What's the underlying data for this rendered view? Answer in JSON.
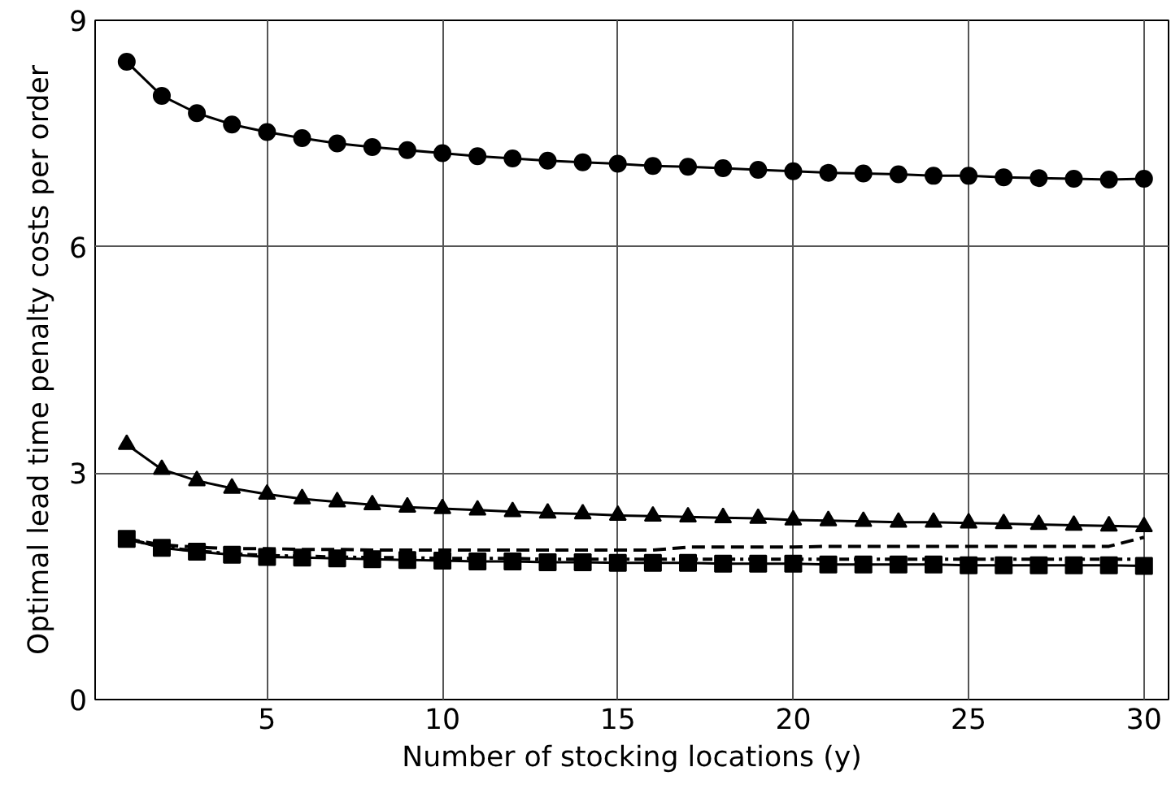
{
  "chart_data": {
    "type": "line",
    "xlabel": "Number of stocking locations (y)",
    "ylabel": "Optimal lead time penalty costs per order",
    "x": [
      1,
      2,
      3,
      4,
      5,
      6,
      7,
      8,
      9,
      10,
      11,
      12,
      13,
      14,
      15,
      16,
      17,
      18,
      19,
      20,
      21,
      22,
      23,
      24,
      25,
      26,
      27,
      28,
      29,
      30
    ],
    "xlim": [
      0.1,
      30.7
    ],
    "xticks": [
      5,
      10,
      15,
      20,
      25,
      30
    ],
    "ylim": [
      0,
      9
    ],
    "yticks": [
      0,
      3,
      6,
      9
    ],
    "grid": true,
    "series": [
      {
        "color": "#000000",
        "marker": "circle",
        "line_style": "solid",
        "values": [
          8.45,
          8.0,
          7.77,
          7.62,
          7.52,
          7.44,
          7.37,
          7.32,
          7.28,
          7.24,
          7.2,
          7.17,
          7.14,
          7.12,
          7.1,
          7.07,
          7.06,
          7.04,
          7.02,
          7.0,
          6.98,
          6.97,
          6.96,
          6.94,
          6.94,
          6.92,
          6.91,
          6.9,
          6.89,
          6.9
        ]
      },
      {
        "color": "#000000",
        "marker": "triangle",
        "line_style": "solid",
        "values": [
          3.38,
          3.05,
          2.9,
          2.8,
          2.72,
          2.66,
          2.62,
          2.58,
          2.55,
          2.53,
          2.51,
          2.49,
          2.47,
          2.46,
          2.44,
          2.43,
          2.42,
          2.41,
          2.4,
          2.38,
          2.37,
          2.36,
          2.35,
          2.35,
          2.34,
          2.33,
          2.32,
          2.31,
          2.3,
          2.29
        ]
      },
      {
        "color": "#000000",
        "marker": "none",
        "line_style": "dashed",
        "values": [
          2.13,
          2.05,
          2.02,
          2.0,
          2.0,
          1.99,
          1.99,
          1.98,
          1.98,
          1.98,
          1.98,
          1.98,
          1.98,
          1.98,
          1.98,
          1.98,
          2.02,
          2.02,
          2.02,
          2.02,
          2.03,
          2.03,
          2.03,
          2.03,
          2.03,
          2.03,
          2.03,
          2.03,
          2.03,
          2.15
        ]
      },
      {
        "color": "#000000",
        "marker": "none",
        "line_style": "dotted",
        "values": [
          2.13,
          2.02,
          1.97,
          1.93,
          1.91,
          1.9,
          1.89,
          1.88,
          1.88,
          1.87,
          1.87,
          1.87,
          1.86,
          1.86,
          1.86,
          1.86,
          1.86,
          1.86,
          1.86,
          1.86,
          1.86,
          1.86,
          1.86,
          1.86,
          1.86,
          1.86,
          1.86,
          1.86,
          1.86,
          1.86
        ]
      },
      {
        "color": "#000000",
        "marker": "square",
        "line_style": "solid",
        "values": [
          2.13,
          2.01,
          1.96,
          1.92,
          1.89,
          1.88,
          1.87,
          1.86,
          1.85,
          1.84,
          1.83,
          1.83,
          1.82,
          1.82,
          1.81,
          1.81,
          1.81,
          1.8,
          1.8,
          1.8,
          1.79,
          1.79,
          1.79,
          1.79,
          1.78,
          1.78,
          1.78,
          1.78,
          1.78,
          1.77
        ]
      }
    ]
  }
}
